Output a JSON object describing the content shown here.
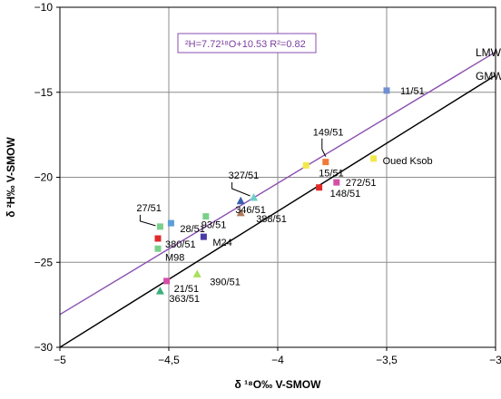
{
  "chart_data": {
    "type": "scatter",
    "xlabel": "δ ¹⁸O‰ V-SMOW",
    "ylabel": "δ ²H‰ V-SMOW",
    "xlim": [
      -5,
      -3
    ],
    "ylim": [
      -30,
      -10
    ],
    "xticks": [
      {
        "v": -5,
        "label": "−5"
      },
      {
        "v": -4.5,
        "label": "−4,5"
      },
      {
        "v": -4,
        "label": "−4"
      },
      {
        "v": -3.5,
        "label": "−3,5"
      },
      {
        "v": -3,
        "label": "−3"
      }
    ],
    "yticks": [
      {
        "v": -30,
        "label": "−30"
      },
      {
        "v": -25,
        "label": "−25"
      },
      {
        "v": -20,
        "label": "−20"
      },
      {
        "v": -15,
        "label": "−15"
      },
      {
        "v": -10,
        "label": "−10"
      }
    ],
    "grid": true,
    "equation": "²H=7.72¹⁸O+10.53 R²=0.82",
    "lines": [
      {
        "name": "LMW",
        "slope": 7.72,
        "intercept": 10.53,
        "color": "#8a4fb0"
      },
      {
        "name": "GMW",
        "slope": 8,
        "intercept": 10,
        "color": "#000000"
      }
    ],
    "points": [
      {
        "label": "11/51",
        "x": -3.5,
        "y": -14.9,
        "shape": "square",
        "color": "#6f8fd0"
      },
      {
        "label": "149/51",
        "x": -3.78,
        "y": -19.1,
        "shape": "square",
        "color": "#f07a3a"
      },
      {
        "label": "",
        "x": -3.87,
        "y": -19.3,
        "shape": "square",
        "color": "#f2e84a"
      },
      {
        "label": "15/51",
        "x": -3.87,
        "y": -19.3,
        "shape": "none",
        "color": "#000000"
      },
      {
        "label": "Oued Ksob",
        "x": -3.56,
        "y": -18.9,
        "shape": "square",
        "color": "#f2e84a"
      },
      {
        "label": "272/51",
        "x": -3.73,
        "y": -20.3,
        "shape": "square",
        "color": "#d44fa8"
      },
      {
        "label": "148/51",
        "x": -3.81,
        "y": -20.6,
        "shape": "square",
        "color": "#e02a2a"
      },
      {
        "label": "327/51",
        "x": -4.11,
        "y": -21.2,
        "shape": "triangle",
        "color": "#6fd0c8"
      },
      {
        "label": "346/51",
        "x": -4.17,
        "y": -21.4,
        "shape": "triangle",
        "color": "#3a5fb0"
      },
      {
        "label": "388/51",
        "x": -4.17,
        "y": -22.1,
        "shape": "triangle",
        "color": "#b07a5a"
      },
      {
        "label": "93/51",
        "x": -4.33,
        "y": -22.3,
        "shape": "square",
        "color": "#7ad08a"
      },
      {
        "label": "27/51",
        "x": -4.54,
        "y": -22.9,
        "shape": "square",
        "color": "#7ad08a"
      },
      {
        "label": "28/51",
        "x": -4.49,
        "y": -22.7,
        "shape": "square",
        "color": "#5a9fd8"
      },
      {
        "label": "380/51",
        "x": -4.55,
        "y": -23.6,
        "shape": "square",
        "color": "#e02a2a"
      },
      {
        "label": "M24",
        "x": -4.34,
        "y": -23.5,
        "shape": "square",
        "color": "#4a3aa8"
      },
      {
        "label": "M98",
        "x": -4.55,
        "y": -24.2,
        "shape": "square",
        "color": "#7ad08a"
      },
      {
        "label": "390/51",
        "x": -4.37,
        "y": -25.7,
        "shape": "triangle",
        "color": "#a8e05a"
      },
      {
        "label": "21/51",
        "x": -4.51,
        "y": -26.1,
        "shape": "square",
        "color": "#d44fa8"
      },
      {
        "label": "363/51",
        "x": -4.54,
        "y": -26.7,
        "shape": "triangle",
        "color": "#3ab07a"
      }
    ]
  }
}
